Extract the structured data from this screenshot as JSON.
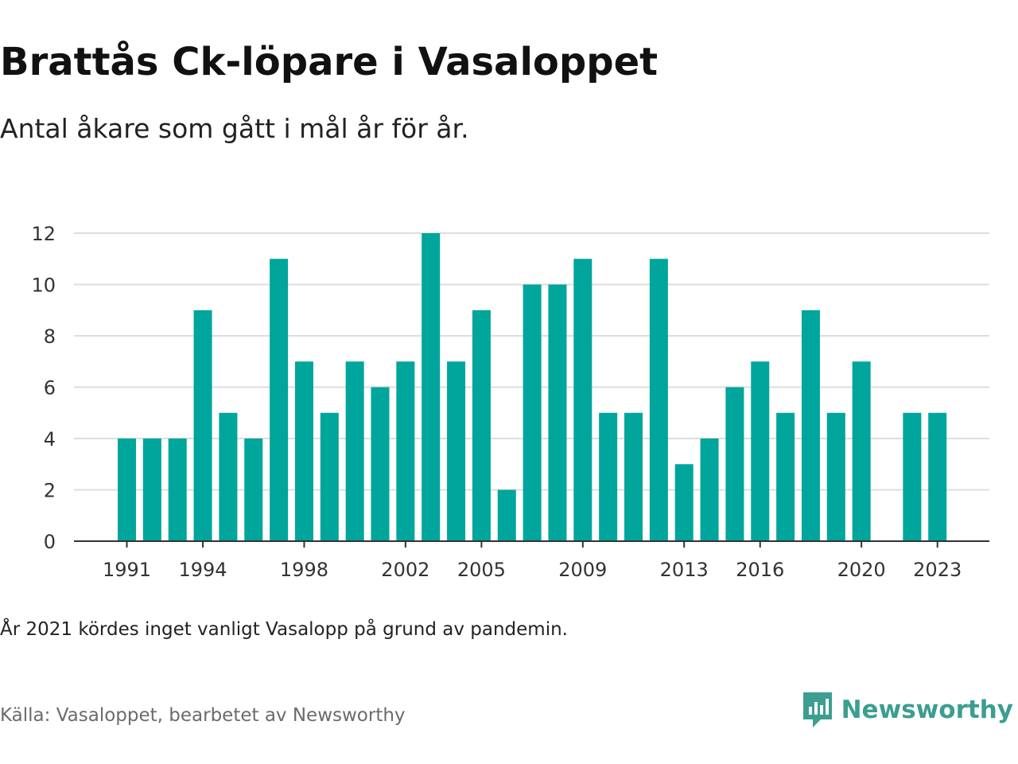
{
  "title": "Brattås Ck-löpare i Vasaloppet",
  "subtitle": "Antal åkare som gått i mål år för år.",
  "note": "År 2021 kördes inget vanligt Vasalopp på grund av pandemin.",
  "source": "Källa: Vasaloppet, bearbetet av Newsworthy",
  "brand": {
    "name": "Newsworthy",
    "icon": "newsworthy-logo-icon",
    "color": "#3b9e91"
  },
  "chart_data": {
    "type": "bar",
    "bar_color": "#00a59b",
    "x": [
      1991,
      1992,
      1993,
      1994,
      1995,
      1996,
      1997,
      1998,
      1999,
      2000,
      2001,
      2002,
      2003,
      2004,
      2005,
      2006,
      2007,
      2008,
      2009,
      2010,
      2011,
      2012,
      2013,
      2014,
      2015,
      2016,
      2017,
      2018,
      2019,
      2020,
      2021,
      2022,
      2023
    ],
    "values": [
      4,
      4,
      4,
      9,
      5,
      4,
      11,
      7,
      5,
      7,
      6,
      7,
      12,
      7,
      9,
      2,
      10,
      10,
      11,
      5,
      5,
      11,
      3,
      4,
      6,
      7,
      5,
      9,
      5,
      7,
      0,
      5,
      5
    ],
    "x_tick_labels": [
      1991,
      1994,
      1998,
      2002,
      2005,
      2009,
      2013,
      2016,
      2020,
      2023
    ],
    "y_ticks": [
      0,
      2,
      4,
      6,
      8,
      10,
      12
    ],
    "ylim": [
      0,
      12
    ],
    "grid": true,
    "xlabel": "",
    "ylabel": ""
  }
}
